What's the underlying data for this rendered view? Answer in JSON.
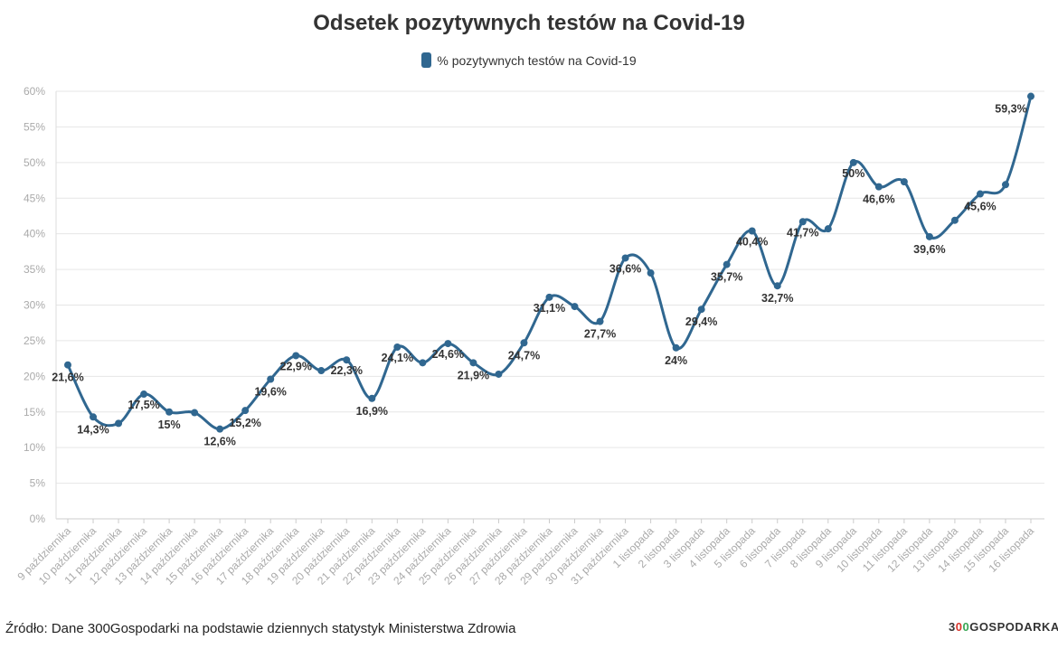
{
  "chart_data": {
    "type": "line",
    "title": "Odsetek pozytywnych testów na Covid-19",
    "legend": {
      "position": "top",
      "entries": [
        "% pozytywnych testów na Covid-19"
      ]
    },
    "xlabel": "",
    "ylabel": "",
    "ylim": [
      0,
      60
    ],
    "yticks": [
      "0%",
      "5%",
      "10%",
      "15%",
      "20%",
      "25%",
      "30%",
      "35%",
      "40%",
      "45%",
      "50%",
      "55%",
      "60%"
    ],
    "grid": true,
    "color": "#306790",
    "categories": [
      "9 października",
      "10 października",
      "11 października",
      "12 października",
      "13 października",
      "14 października",
      "15 października",
      "16 października",
      "17 października",
      "18 października",
      "19 października",
      "20 października",
      "21 października",
      "22 października",
      "23 października",
      "24 października",
      "25 października",
      "26 października",
      "27 października",
      "28 października",
      "29 października",
      "30 października",
      "31 października",
      "1 listopada",
      "2 listopada",
      "3 listopada",
      "4 listopada",
      "5 listopada",
      "6 listopada",
      "7 listopada",
      "8 listopada",
      "9 listopada",
      "10 listopada",
      "11 listopada",
      "12 listopada",
      "13 listopada",
      "14 listopada",
      "15 listopada",
      "16 listopada"
    ],
    "series": [
      {
        "values": [
          21.6,
          14.3,
          13.4,
          17.5,
          15.0,
          14.9,
          12.6,
          15.2,
          19.6,
          22.9,
          20.8,
          22.3,
          16.9,
          24.1,
          21.9,
          24.6,
          21.9,
          20.3,
          24.7,
          31.1,
          29.8,
          27.7,
          36.6,
          34.5,
          24.0,
          29.4,
          35.7,
          40.4,
          32.7,
          41.7,
          40.7,
          50.0,
          46.6,
          47.3,
          39.6,
          41.9,
          45.6,
          46.9,
          59.3
        ],
        "data_labels": [
          "21,6%",
          "14,3%",
          null,
          "17,5%",
          "15%",
          null,
          "12,6%",
          "15,2%",
          "19,6%",
          "22,9%",
          null,
          "22,3%",
          "16,9%",
          "24,1%",
          null,
          "24,6%",
          "21,9%",
          null,
          "24,7%",
          "31,1%",
          null,
          "27,7%",
          "36,6%",
          null,
          "24%",
          "29,4%",
          "35,7%",
          "40,4%",
          "32,7%",
          "41,7%",
          null,
          "50%",
          "46,6%",
          null,
          "39,6%",
          null,
          "45,6%",
          null,
          "59,3%"
        ]
      }
    ]
  },
  "footer": {
    "source": "Źródło: Dane 300Gospodarki na podstawie dziennych statystyk Ministerstwa Zdrowia",
    "logo": "300GOSPODARKA",
    "logo_colors": {
      "3": "#333333",
      "0a": "#d9342b",
      "0b": "#3aa655"
    }
  }
}
